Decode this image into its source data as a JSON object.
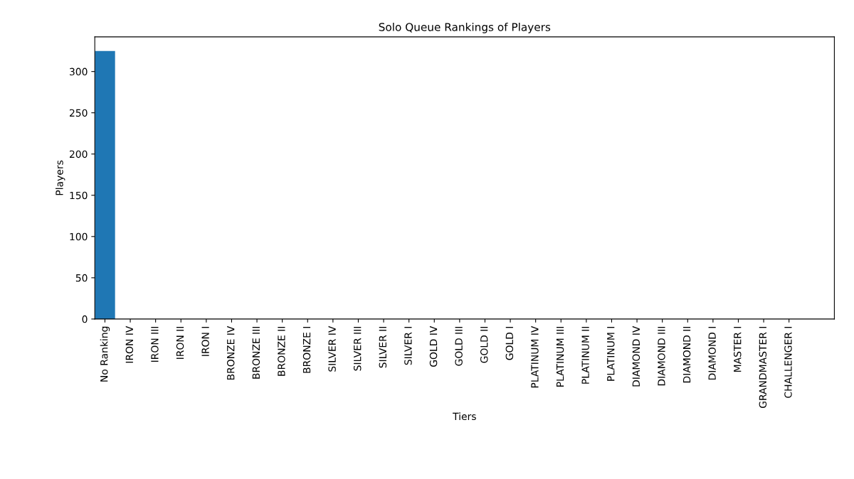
{
  "chart_data": {
    "type": "bar",
    "title": "Solo Queue Rankings of Players",
    "xlabel": "Tiers",
    "ylabel": "Players",
    "categories": [
      "No Ranking",
      "IRON IV",
      "IRON III",
      "IRON II",
      "IRON I",
      "BRONZE IV",
      "BRONZE III",
      "BRONZE II",
      "BRONZE I",
      "SILVER IV",
      "SILVER III",
      "SILVER II",
      "SILVER I",
      "GOLD IV",
      "GOLD III",
      "GOLD II",
      "GOLD I",
      "PLATINUM IV",
      "PLATINUM III",
      "PLATINUM II",
      "PLATINUM I",
      "DIAMOND IV",
      "DIAMOND III",
      "DIAMOND II",
      "DIAMOND I",
      "MASTER I",
      "GRANDMASTER I",
      "CHALLENGER I"
    ],
    "values": [
      325,
      0,
      0,
      0,
      0,
      0,
      0,
      0,
      0,
      0,
      0,
      0,
      0,
      0,
      0,
      0,
      0,
      0,
      0,
      0,
      0,
      0,
      0,
      0,
      0,
      0,
      0,
      0
    ],
    "color": "#1f77b4",
    "ylim": [
      0,
      342
    ],
    "yticks": [
      0,
      50,
      100,
      150,
      200,
      250,
      300
    ],
    "grid": false
  }
}
